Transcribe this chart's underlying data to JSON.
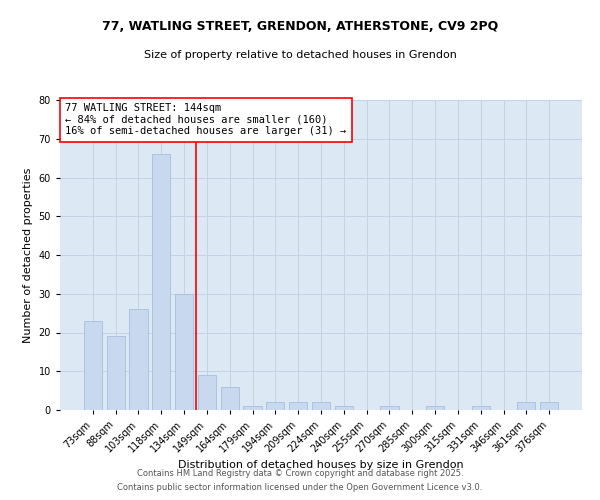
{
  "title1": "77, WATLING STREET, GRENDON, ATHERSTONE, CV9 2PQ",
  "title2": "Size of property relative to detached houses in Grendon",
  "xlabel": "Distribution of detached houses by size in Grendon",
  "ylabel": "Number of detached properties",
  "categories": [
    "73sqm",
    "88sqm",
    "103sqm",
    "118sqm",
    "134sqm",
    "149sqm",
    "164sqm",
    "179sqm",
    "194sqm",
    "209sqm",
    "224sqm",
    "240sqm",
    "255sqm",
    "270sqm",
    "285sqm",
    "300sqm",
    "315sqm",
    "331sqm",
    "346sqm",
    "361sqm",
    "376sqm"
  ],
  "values": [
    23,
    19,
    26,
    66,
    30,
    9,
    6,
    1,
    2,
    2,
    2,
    1,
    0,
    1,
    0,
    1,
    0,
    1,
    0,
    2,
    2
  ],
  "bar_color": "#c8d8ee",
  "bar_edge_color": "#a0b8d8",
  "bar_edge_width": 0.5,
  "vline_x": 4.5,
  "vline_color": "red",
  "vline_linewidth": 1.2,
  "annotation_text": "77 WATLING STREET: 144sqm\n← 84% of detached houses are smaller (160)\n16% of semi-detached houses are larger (31) →",
  "annotation_fontsize": 7.5,
  "annotation_box_color": "white",
  "annotation_box_edge": "red",
  "ylim": [
    0,
    80
  ],
  "yticks": [
    0,
    10,
    20,
    30,
    40,
    50,
    60,
    70,
    80
  ],
  "grid_color": "#c0d0e0",
  "bg_color": "#dce8f4",
  "footnote1": "Contains HM Land Registry data © Crown copyright and database right 2025.",
  "footnote2": "Contains public sector information licensed under the Open Government Licence v3.0.",
  "title_fontsize": 9,
  "subtitle_fontsize": 8,
  "xlabel_fontsize": 8,
  "ylabel_fontsize": 8,
  "tick_fontsize": 7,
  "footnote_fontsize": 6
}
